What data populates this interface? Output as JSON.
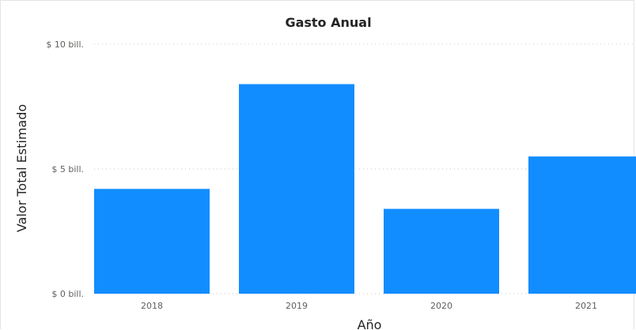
{
  "chart_data": {
    "type": "bar",
    "title": "Gasto Anual",
    "xlabel": "Año",
    "ylabel": "Valor Total Estimado",
    "categories": [
      "2018",
      "2019",
      "2020",
      "2021"
    ],
    "values": [
      4.2,
      8.4,
      3.4,
      5.5
    ],
    "ylim": [
      0,
      10
    ],
    "yticks": [
      {
        "value": 0,
        "label": "$ 0 bill."
      },
      {
        "value": 5,
        "label": "$ 5 bill."
      },
      {
        "value": 10,
        "label": "$ 10 bill."
      }
    ],
    "grid": true,
    "bar_color": "#118DFF"
  }
}
